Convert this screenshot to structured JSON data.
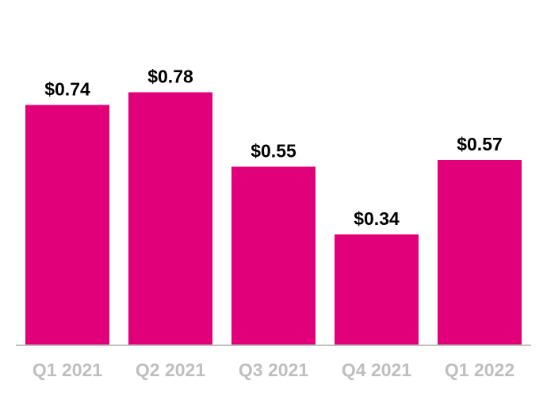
{
  "chart_data": {
    "type": "bar",
    "categories": [
      "Q1 2021",
      "Q2 2021",
      "Q3 2021",
      "Q4 2021",
      "Q1 2022"
    ],
    "values": [
      0.74,
      0.78,
      0.55,
      0.34,
      0.57
    ],
    "data_labels": [
      "$0.74",
      "$0.78",
      "$0.55",
      "$0.34",
      "$0.57"
    ],
    "title": "",
    "xlabel": "",
    "ylabel": "",
    "ylim": [
      0,
      1.06
    ],
    "grid": false,
    "legend": "none",
    "colors": {
      "bar": "#e2007a",
      "data_label": "#000000",
      "tick_label": "#bfbfbf",
      "axis_line": "#bfbfbf"
    }
  }
}
